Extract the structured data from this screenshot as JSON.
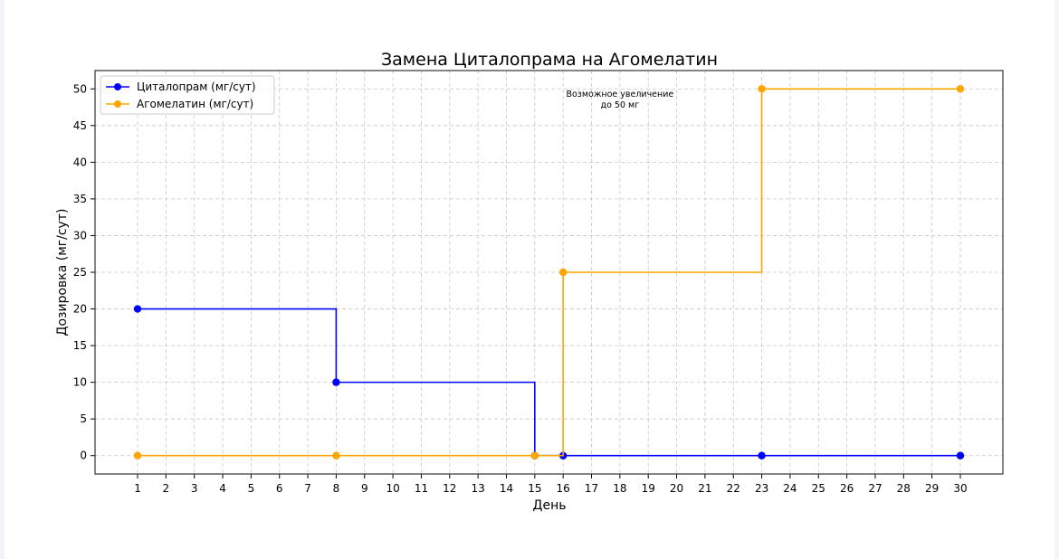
{
  "chart_data": {
    "type": "line",
    "title": "Замена Циталопрама на Агомелатин",
    "xlabel": "День",
    "ylabel": "Дозировка (мг/сут)",
    "xlim": [
      -0.5,
      31.5
    ],
    "ylim": [
      -2.5,
      52.5
    ],
    "x_ticks": [
      1,
      2,
      3,
      4,
      5,
      6,
      7,
      8,
      9,
      10,
      11,
      12,
      13,
      14,
      15,
      16,
      17,
      18,
      19,
      20,
      21,
      22,
      23,
      24,
      25,
      26,
      27,
      28,
      29,
      30
    ],
    "y_ticks": [
      0,
      5,
      10,
      15,
      20,
      25,
      30,
      35,
      40,
      45,
      50
    ],
    "grid": true,
    "legend_position": "top-left",
    "step_style": "post",
    "series": [
      {
        "name": "Циталопрам (мг/сут)",
        "color": "#0000ff",
        "x": [
          1,
          8,
          15,
          16,
          23,
          30
        ],
        "y": [
          20,
          10,
          0,
          0,
          0,
          0
        ]
      },
      {
        "name": "Агомелатин (мг/сут)",
        "color": "#ffa500",
        "x": [
          1,
          8,
          15,
          16,
          23,
          30
        ],
        "y": [
          0,
          0,
          0,
          25,
          50,
          50
        ]
      }
    ],
    "annotations": [
      {
        "text_lines": [
          "Возможное увеличение",
          "до 50 мг"
        ],
        "x": 18,
        "y": 48.9
      }
    ]
  }
}
